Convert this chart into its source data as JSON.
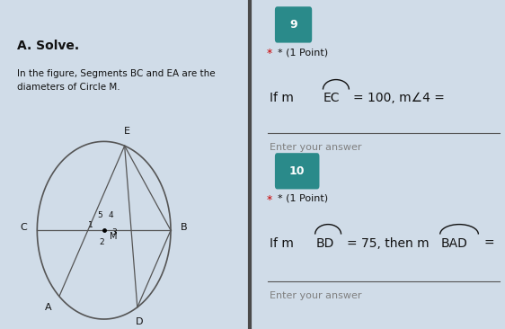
{
  "bg_left": "#d0dce8",
  "bg_right": "#cdd8e4",
  "bg_divider": "#4a4a4a",
  "circle_color": "#555555",
  "line_color": "#555555",
  "title_left_bold": "A. Solve.",
  "subtitle_left": "In the figure, Segments BC and EA are the\ndiameters of Circle M.",
  "q9_badge_color": "#2a8a8a",
  "q9_badge_text": "9",
  "q9_point": "* (1 Point)",
  "q9_answer_label": "Enter your answer",
  "q10_badge_color": "#2a8a8a",
  "q10_badge_text": "10",
  "q10_point": "* (1 Point)",
  "q10_answer_label": "Enter your answer",
  "point_color": "#cc0000",
  "text_color": "#111111",
  "answer_line_color": "#555555"
}
